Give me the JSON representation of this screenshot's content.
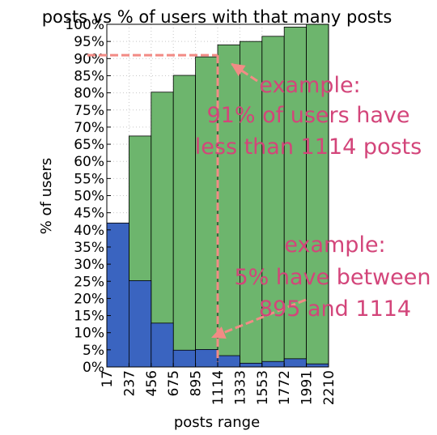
{
  "chart_data": {
    "type": "bar",
    "title": "posts vs % of users with that many posts",
    "xlabel": "posts range",
    "ylabel": "% of users",
    "x_tick_labels": [
      "17",
      "237",
      "456",
      "675",
      "895",
      "1114",
      "1333",
      "1553",
      "1772",
      "1991",
      "2210"
    ],
    "y_tick_labels": [
      "0%",
      "5%",
      "10%",
      "15%",
      "20%",
      "25%",
      "30%",
      "35%",
      "40%",
      "45%",
      "50%",
      "55%",
      "60%",
      "65%",
      "70%",
      "75%",
      "80%",
      "85%",
      "90%",
      "95%",
      "100%"
    ],
    "ylim": [
      0,
      100
    ],
    "grid": true,
    "series": [
      {
        "name": "",
        "color": "#6db56d",
        "values": [
          42,
          67.4,
          80.2,
          85.1,
          90.5,
          94,
          95,
          96.5,
          99.2,
          100
        ]
      },
      {
        "name": "",
        "color": "#3a64c0",
        "values": [
          42,
          25.2,
          12.8,
          4.9,
          5.1,
          3.3,
          1.1,
          1.6,
          2.4,
          0.9
        ]
      }
    ]
  },
  "annotations": {
    "top": [
      "example:",
      "91% of users have",
      "less than 1114 posts"
    ],
    "bottom": [
      "example:",
      "5% have between",
      "895 and 1114"
    ],
    "color": "#d3457a",
    "arrow_color": "#f28b85"
  }
}
